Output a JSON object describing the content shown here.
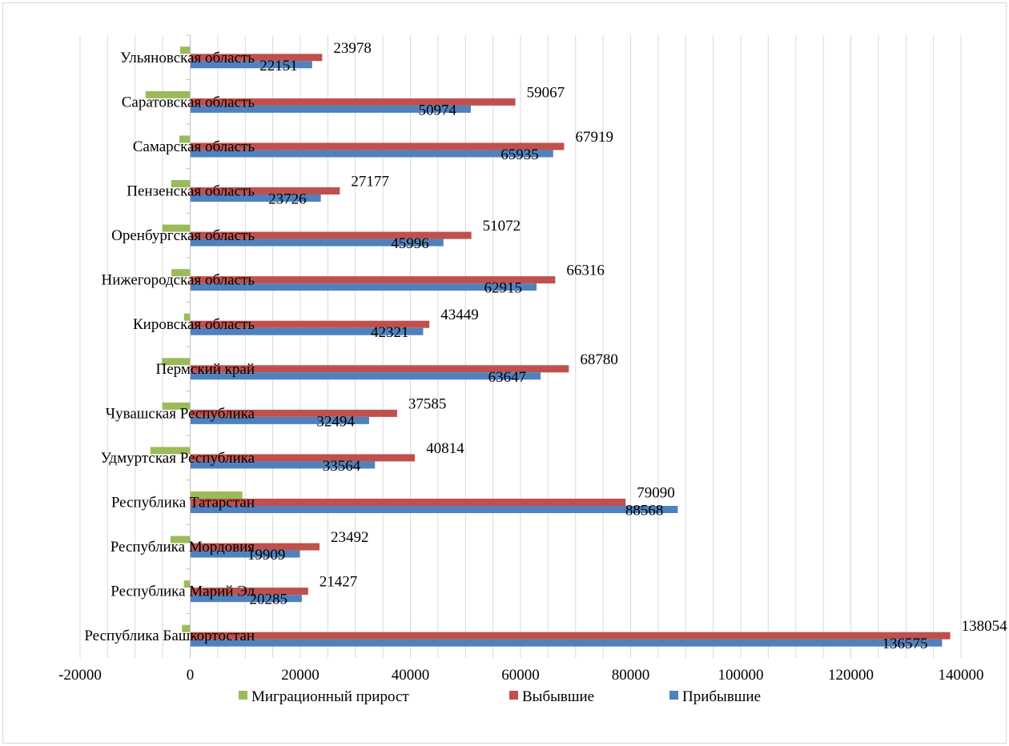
{
  "chart_data": {
    "type": "bar",
    "orientation": "horizontal",
    "categories": [
      "Ульяновская область",
      "Саратовская область",
      "Самарская область",
      "Пензенская область",
      "Оренбургская область",
      "Нижегородская область",
      "Кировская область",
      "Пермский край",
      "Чувашская Республика",
      "Удмуртская Республика",
      "Республика Татарстан",
      "Республика Мордовия",
      "Республика Марий Эл",
      "Республика Башкортостан"
    ],
    "series": [
      {
        "name": "Миграционный прирост",
        "color": "#9bbb59",
        "values": [
          -1827,
          -8093,
          -1984,
          -3451,
          -5076,
          -3401,
          -1128,
          -5133,
          -5091,
          -7250,
          9478,
          -3583,
          -1142,
          -1479
        ],
        "show_labels": false
      },
      {
        "name": "Выбывшие",
        "color": "#c0504d",
        "values": [
          23978,
          59067,
          67919,
          27177,
          51072,
          66316,
          43449,
          68780,
          37585,
          40814,
          79090,
          23492,
          21427,
          138054
        ],
        "show_labels": true
      },
      {
        "name": "Прибывшие",
        "color": "#4f81bd",
        "values": [
          22151,
          50974,
          65935,
          23726,
          45996,
          62915,
          42321,
          63647,
          32494,
          33564,
          88568,
          19909,
          20285,
          136575
        ],
        "show_labels": true
      }
    ],
    "xlim": [
      -20000,
      140000
    ],
    "xticks": [
      "-20000",
      "0",
      "20000",
      "40000",
      "60000",
      "80000",
      "100000",
      "120000",
      "140000"
    ],
    "xtick_values": [
      -20000,
      0,
      20000,
      40000,
      60000,
      80000,
      100000,
      120000,
      140000
    ],
    "grid": true,
    "grid_color": "#d9d9d9",
    "legend_position": "bottom",
    "legend_order": [
      "Миграционный прирост",
      "Выбывшие",
      "Прибывшие"
    ]
  }
}
